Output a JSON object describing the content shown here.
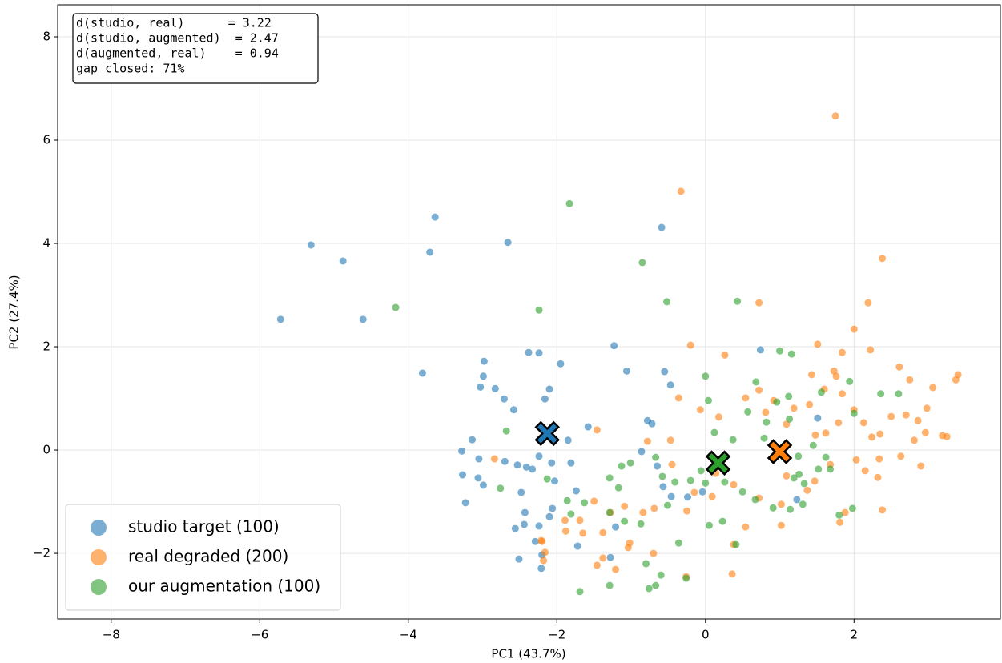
{
  "chart_data": {
    "type": "scatter",
    "xlabel": "PC1 (43.7%)",
    "ylabel": "PC2 (27.4%)",
    "xlim": [
      -8.72,
      3.97
    ],
    "ylim": [
      -3.27,
      8.62
    ],
    "xticks": [
      {
        "value": -8,
        "label": "−8"
      },
      {
        "value": -6,
        "label": "−6"
      },
      {
        "value": -4,
        "label": "−4"
      },
      {
        "value": -2,
        "label": "−2"
      },
      0,
      2
    ],
    "yticks": [
      {
        "value": -2,
        "label": "−2"
      },
      0,
      2,
      4,
      6,
      8
    ],
    "grid": true,
    "legend": "lower left",
    "annotation_lines": [
      "d(studio, real)      = 3.22",
      "d(studio, augmented)  = 2.47",
      "d(augmented, real)    = 0.94",
      "gap closed: 71%"
    ],
    "series": [
      {
        "name": "studio target (100)",
        "color": "#1f77b4",
        "centroid": [
          -2.13,
          0.32
        ],
        "x": [
          -5.31,
          -4.88,
          -3.64,
          -3.71,
          -2.66,
          -5.72,
          -4.61,
          -3.81,
          -0.59,
          -1.23,
          -1.06,
          -0.55,
          0.74,
          -2.98,
          -2.38,
          -2.24,
          -1.95,
          -2.1,
          -2.16,
          -2.99,
          -3.03,
          -2.83,
          -2.71,
          -2.58,
          -3.14,
          -3.28,
          -3.05,
          -3.27,
          -3.06,
          -2.99,
          -3.23,
          -2.7,
          -2.53,
          -2.41,
          -2.33,
          -2.48,
          -2.24,
          -2.07,
          -1.85,
          -1.58,
          -1.81,
          -1.74,
          -2.03,
          -2.06,
          -2.1,
          -2.43,
          -2.56,
          -2.44,
          -2.24,
          -2.29,
          -2.2,
          -2.51,
          -2.21,
          -1.72,
          -1.21,
          -1.28,
          -0.78,
          -0.72,
          -0.86,
          -0.65,
          -0.57,
          -0.46,
          -0.24,
          -0.04,
          1.23,
          1.51,
          -0.47
        ],
        "values": [
          3.97,
          3.66,
          4.51,
          3.83,
          4.02,
          2.53,
          2.53,
          1.49,
          4.31,
          2.02,
          1.53,
          1.52,
          1.94,
          1.72,
          1.89,
          1.88,
          1.67,
          1.18,
          0.99,
          1.43,
          1.22,
          1.19,
          0.99,
          0.78,
          0.2,
          -0.02,
          -0.17,
          -0.48,
          -0.54,
          -0.68,
          -1.02,
          -0.22,
          -0.29,
          -0.33,
          -0.37,
          -0.82,
          -0.12,
          -0.25,
          0.19,
          0.45,
          -0.25,
          -0.79,
          -0.6,
          -1.13,
          -1.29,
          -1.21,
          -1.52,
          -1.44,
          -1.47,
          -1.77,
          -2.03,
          -2.11,
          -2.29,
          -1.86,
          -1.49,
          -2.08,
          0.57,
          0.51,
          -0.03,
          -0.31,
          -0.71,
          -0.9,
          -0.91,
          -0.81,
          -0.96,
          0.62,
          1.26
        ]
      },
      {
        "name": "real degraded (200)",
        "color": "#ff7f0e",
        "centroid": [
          1.0,
          -0.03
        ],
        "x": [
          1.75,
          -0.33,
          2.38,
          0.72,
          2.19,
          -0.2,
          0.26,
          2.0,
          1.51,
          1.84,
          2.22,
          2.61,
          2.75,
          3.06,
          3.4,
          3.37,
          1.73,
          1.76,
          1.43,
          1.6,
          1.84,
          2.0,
          1.4,
          1.19,
          0.92,
          0.54,
          0.72,
          -0.36,
          -0.07,
          0.18,
          0.81,
          1.09,
          1.48,
          1.62,
          1.79,
          2.13,
          2.24,
          2.35,
          2.5,
          2.7,
          2.86,
          2.98,
          2.96,
          3.19,
          3.25,
          2.81,
          2.63,
          2.34,
          2.03,
          1.68,
          2.15,
          2.32,
          2.9,
          2.38,
          1.81,
          1.37,
          1.02,
          1.02,
          0.54,
          0.72,
          0.38,
          0.14,
          0.09,
          -0.15,
          -0.25,
          -0.45,
          -0.47,
          -0.78,
          -0.69,
          -0.84,
          -1.09,
          -1.28,
          -1.5,
          -1.69,
          -1.89,
          -1.88,
          -1.65,
          -1.38,
          -1.02,
          -1.04,
          -0.7,
          -1.38,
          -1.46,
          -1.21,
          -2.2,
          -2.16,
          -2.18,
          -2.84,
          -2.21,
          0.36,
          -0.26,
          0.38,
          1.09,
          1.47,
          1.88,
          -1.46
        ],
        "values": [
          6.47,
          5.01,
          3.71,
          2.85,
          2.85,
          2.03,
          1.84,
          2.34,
          2.05,
          1.89,
          1.94,
          1.61,
          1.36,
          1.21,
          1.46,
          1.36,
          1.53,
          1.43,
          1.46,
          1.18,
          1.09,
          0.78,
          0.88,
          0.81,
          0.96,
          1.01,
          1.16,
          1.01,
          0.78,
          0.64,
          0.73,
          0.5,
          0.29,
          0.33,
          0.53,
          0.53,
          0.25,
          0.31,
          0.65,
          0.68,
          0.57,
          0.81,
          0.34,
          0.28,
          0.26,
          0.19,
          -0.12,
          -0.17,
          -0.19,
          -0.28,
          -0.4,
          -0.53,
          -0.31,
          -1.16,
          -1.4,
          -0.78,
          -1.05,
          -1.46,
          -1.49,
          -0.93,
          -0.67,
          -0.45,
          -0.9,
          -0.82,
          -1.18,
          -0.28,
          0.19,
          0.17,
          -1.13,
          -1.21,
          -1.09,
          -1.21,
          -0.99,
          -1.36,
          -1.36,
          -1.57,
          -1.61,
          -1.6,
          -1.8,
          -1.89,
          -2.0,
          -2.09,
          -2.23,
          -2.31,
          -1.77,
          -1.98,
          -2.14,
          -0.17,
          -1.75,
          -2.4,
          -2.45,
          -1.83,
          -0.5,
          -0.6,
          -1.21,
          0.39
        ]
      },
      {
        "name": "our augmentation (100)",
        "color": "#2ca02c",
        "centroid": [
          0.17,
          -0.25
        ],
        "x": [
          -1.83,
          -0.85,
          -0.52,
          0.43,
          -2.24,
          -4.17,
          1.0,
          1.16,
          0,
          0.68,
          1.94,
          1.56,
          2.6,
          0.04,
          0.96,
          1.12,
          0.12,
          0.37,
          1.13,
          0.79,
          1.45,
          1.25,
          1.52,
          1.62,
          1.26,
          1.19,
          1.33,
          1.31,
          1.14,
          0.91,
          0.67,
          0.5,
          0.26,
          0,
          -0.06,
          -0.2,
          -0.41,
          -0.51,
          -0.58,
          -0.67,
          -1.01,
          -1.13,
          -1.17,
          -1.29,
          -1.63,
          -1.81,
          -2.13,
          -2.76,
          -2.68,
          -1.29,
          -1.09,
          -0.87,
          -0.8,
          -0.6,
          -0.67,
          -0.76,
          -0.26,
          -1.29,
          -1.69,
          -0.36,
          0.05,
          0.23,
          0.41,
          1.98,
          1.8,
          1.68,
          2.36,
          2.0,
          -1.86,
          0.57,
          0.82
        ],
        "values": [
          4.77,
          3.63,
          2.87,
          2.88,
          2.71,
          2.76,
          1.92,
          1.86,
          1.43,
          1.32,
          1.33,
          1.12,
          1.09,
          0.96,
          0.93,
          1.04,
          0.34,
          0.2,
          0.6,
          0.23,
          0.09,
          -0.12,
          -0.37,
          -0.14,
          -0.47,
          -0.54,
          -0.65,
          -1.05,
          -1.15,
          -1.12,
          -0.96,
          -0.81,
          -0.62,
          -0.64,
          -0.4,
          -0.59,
          -0.62,
          -1.07,
          -0.51,
          -0.14,
          -0.25,
          -0.31,
          -0.73,
          -0.54,
          -1.02,
          -1.24,
          -0.56,
          -0.74,
          0.37,
          -1.21,
          -1.38,
          -1.43,
          -2.2,
          -2.42,
          -2.62,
          -2.68,
          -2.48,
          -2.62,
          -2.74,
          -1.8,
          -1.46,
          -1.38,
          -1.83,
          -1.13,
          -1.26,
          -0.37,
          1.09,
          0.71,
          -0.98,
          0.74,
          0.54
        ]
      }
    ]
  }
}
